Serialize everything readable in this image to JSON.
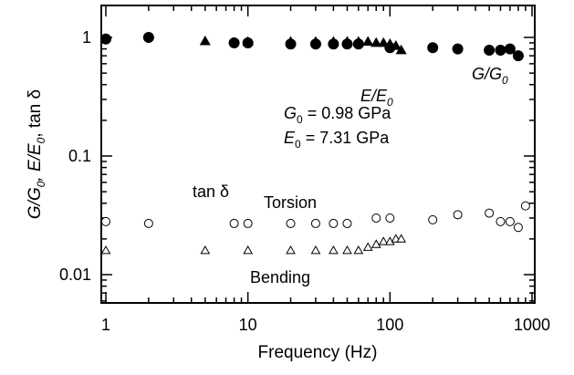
{
  "chart_data": {
    "type": "scatter",
    "title": "",
    "xlabel": "Frequency (Hz)",
    "ylabel": "G/G0, E/E0, tan δ",
    "xscale": "log",
    "yscale": "log",
    "xlim": [
      1,
      1000
    ],
    "ylim": [
      0.005,
      1.5
    ],
    "x_ticks": [
      {
        "value": 1,
        "label": "1"
      },
      {
        "value": 10,
        "label": "10"
      },
      {
        "value": 100,
        "label": "100"
      },
      {
        "value": 1000,
        "label": "1000"
      }
    ],
    "y_ticks": [
      {
        "value": 0.01,
        "label": "0.01"
      },
      {
        "value": 0.1,
        "label": "0.1"
      },
      {
        "value": 1,
        "label": "1"
      }
    ],
    "grid": false,
    "legend": "none",
    "series": [
      {
        "name": "G/G0",
        "marker": "circle-filled",
        "color": "#000000",
        "x": [
          1,
          2,
          8,
          10,
          20,
          30,
          40,
          50,
          60,
          100,
          200,
          300,
          500,
          600,
          700,
          800
        ],
        "y": [
          0.97,
          1.0,
          0.9,
          0.9,
          0.88,
          0.88,
          0.88,
          0.88,
          0.88,
          0.82,
          0.82,
          0.8,
          0.78,
          0.78,
          0.8,
          0.7
        ]
      },
      {
        "name": "E/E0",
        "marker": "triangle-filled",
        "color": "#000000",
        "x": [
          5,
          10,
          20,
          30,
          40,
          50,
          60,
          70,
          80,
          90,
          100,
          110,
          120
        ],
        "y": [
          0.93,
          0.92,
          0.92,
          0.92,
          0.92,
          0.92,
          0.92,
          0.92,
          0.9,
          0.9,
          0.88,
          0.85,
          0.78
        ]
      },
      {
        "name": "tan δ Torsion",
        "marker": "circle-open",
        "color": "#000000",
        "x": [
          1,
          2,
          8,
          10,
          20,
          30,
          40,
          50,
          80,
          100,
          200,
          300,
          500,
          600,
          700,
          800,
          900
        ],
        "y": [
          0.028,
          0.027,
          0.027,
          0.027,
          0.027,
          0.027,
          0.027,
          0.027,
          0.03,
          0.03,
          0.029,
          0.032,
          0.033,
          0.028,
          0.028,
          0.025,
          0.038
        ]
      },
      {
        "name": "tan δ Bending",
        "marker": "triangle-open",
        "color": "#000000",
        "x": [
          1,
          5,
          10,
          20,
          30,
          40,
          50,
          60,
          70,
          80,
          90,
          100,
          110,
          120
        ],
        "y": [
          0.016,
          0.016,
          0.016,
          0.016,
          0.016,
          0.016,
          0.016,
          0.016,
          0.017,
          0.018,
          0.019,
          0.019,
          0.02,
          0.02
        ]
      }
    ],
    "annotations": {
      "e_label_main": "E/E",
      "e_label_sub": "0",
      "g_label_main": "G/G",
      "g_label_sub": "0",
      "g0_main": "G",
      "g0_sub": "0",
      "g0_value": " = 0.98 GPa",
      "e0_main": "E",
      "e0_sub": "0",
      "e0_value": " = 7.31 GPa",
      "tan_delta": "tan δ",
      "torsion": "Torsion",
      "bending": "Bending"
    },
    "ylabel_parts": {
      "p1": "G/G",
      "s1": "0",
      "p2": ", E/E",
      "s2": "0",
      "p3": ", tan δ"
    }
  }
}
